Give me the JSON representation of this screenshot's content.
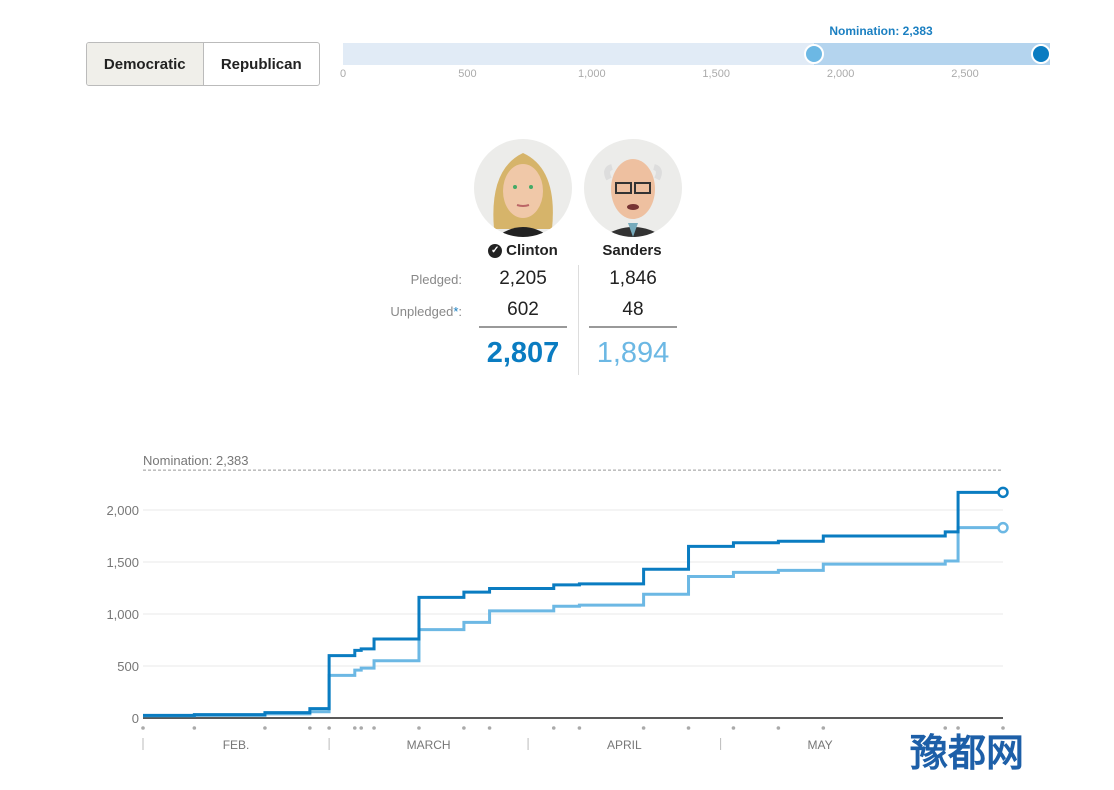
{
  "party_toggle": {
    "options": [
      "Democratic",
      "Republican"
    ],
    "selected": "Democratic"
  },
  "slider": {
    "label": "Nomination: 2,383",
    "nomination": 2383,
    "max": 2841,
    "ticks": [
      "0",
      "500",
      "1,000",
      "1,500",
      "2,000",
      "2,500"
    ],
    "tick_values": [
      0,
      500,
      1000,
      1500,
      2000,
      2500
    ],
    "clinton_total": 2807,
    "sanders_total": 1894
  },
  "candidates": [
    {
      "name": "Clinton",
      "winner": true,
      "pledged": "2,205",
      "unpledged": "602",
      "total": "2,807",
      "color": "#0a7cc1"
    },
    {
      "name": "Sanders",
      "winner": false,
      "pledged": "1,846",
      "unpledged": "48",
      "total": "1,894",
      "color": "#6cb8e4"
    }
  ],
  "labels": {
    "pledged": "Pledged:",
    "unpledged": "Unpledged",
    "asterisk": "*",
    "colon": ":"
  },
  "watermark": "豫都网",
  "chart_data": {
    "type": "line",
    "step": true,
    "x_unit": "days since Feb. 1, 2016",
    "xlim": [
      0,
      134
    ],
    "ylim": [
      0,
      2383
    ],
    "yticks": [
      0,
      500,
      1000,
      1500,
      2000
    ],
    "ytick_labels": [
      "0",
      "500",
      "1,000",
      "1,500",
      "2,000"
    ],
    "reference_line": {
      "value": 2383,
      "label": "Nomination: 2,383"
    },
    "months": [
      {
        "label": "FEB.",
        "start": 0,
        "end": 29
      },
      {
        "label": "MARCH",
        "start": 29,
        "end": 60
      },
      {
        "label": "APRIL",
        "start": 60,
        "end": 90
      },
      {
        "label": "MAY",
        "start": 90,
        "end": 121
      }
    ],
    "contest_days": [
      0,
      8,
      19,
      26,
      29,
      33,
      34,
      36,
      43,
      50,
      54,
      64,
      68,
      78,
      85,
      92,
      99,
      106,
      125,
      127,
      134
    ],
    "x": [
      0,
      8,
      19,
      26,
      29,
      33,
      34,
      36,
      43,
      50,
      54,
      64,
      68,
      78,
      85,
      92,
      99,
      106,
      125,
      127,
      134
    ],
    "series": [
      {
        "name": "Clinton",
        "color": "#0a7cc1",
        "values": [
          25,
          32,
          52,
          90,
          600,
          650,
          665,
          760,
          1160,
          1210,
          1245,
          1280,
          1290,
          1430,
          1650,
          1685,
          1700,
          1750,
          1790,
          2170,
          2170
        ]
      },
      {
        "name": "Sanders",
        "color": "#6cb8e4",
        "values": [
          20,
          25,
          40,
          60,
          410,
          460,
          480,
          550,
          850,
          920,
          1030,
          1075,
          1085,
          1190,
          1360,
          1400,
          1420,
          1480,
          1510,
          1830,
          1830
        ]
      }
    ]
  }
}
